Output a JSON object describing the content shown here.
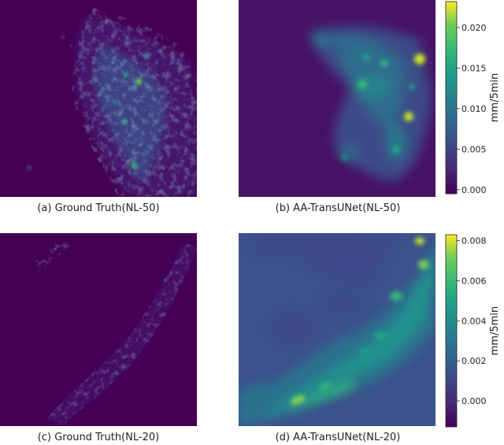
{
  "chart_data": [
    {
      "type": "heatmap",
      "title": "",
      "caption": "(a) Ground Truth(NL-50)",
      "colormap": "viridis",
      "field": "ground-truth-nl50"
    },
    {
      "type": "heatmap",
      "title": "",
      "caption": "(b) AA-TransUNet(NL-50)",
      "colormap": "viridis",
      "field": "pred-nl50",
      "colorbar": {
        "label": "mm/5min",
        "range": [
          -0.0005,
          0.0232
        ],
        "ticks": [
          0.0,
          0.005,
          0.01,
          0.015,
          0.02
        ],
        "tick_labels": [
          "0.000",
          "0.005",
          "0.010",
          "0.015",
          "0.020"
        ]
      }
    },
    {
      "type": "heatmap",
      "title": "",
      "caption": "(c) Ground Truth(NL-20)",
      "colormap": "viridis",
      "field": "ground-truth-nl20"
    },
    {
      "type": "heatmap",
      "title": "",
      "caption": "(d) AA-TransUNet(NL-20)",
      "colormap": "viridis",
      "field": "pred-nl20",
      "colorbar": {
        "label": "mm/5min",
        "range": [
          -0.0013,
          0.0083
        ],
        "ticks": [
          0.0,
          0.002,
          0.004,
          0.006,
          0.008
        ],
        "tick_labels": [
          "0.000",
          "0.002",
          "0.004",
          "0.006",
          "0.008"
        ]
      }
    }
  ],
  "colors": {
    "viridis_low": "#440154",
    "viridis_mid": "#21918c",
    "viridis_high": "#fde725"
  }
}
